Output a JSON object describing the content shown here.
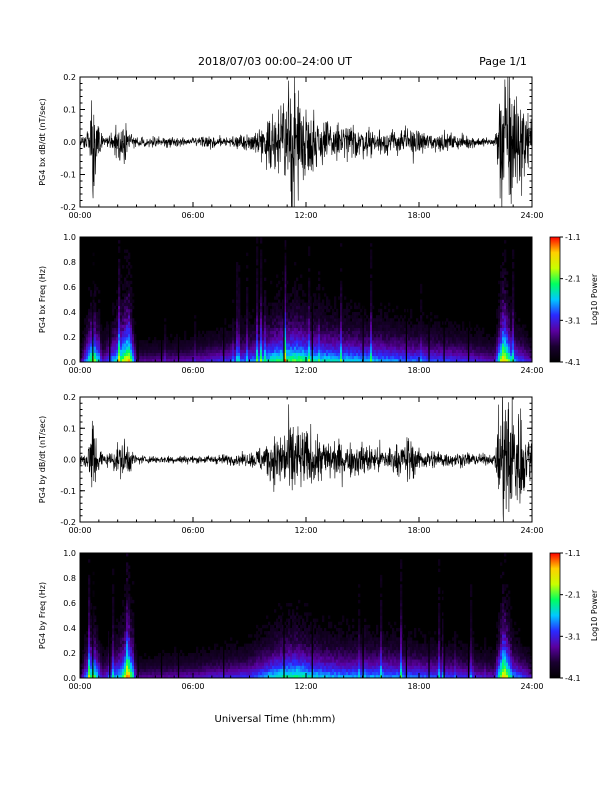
{
  "header": {
    "title": "2018/07/03  00:00–24:00 UT",
    "page": "Page 1/1"
  },
  "footer": {
    "xlabel": "Universal Time (hh:mm)"
  },
  "colors": {
    "trace": "#000000",
    "spectrogram_background": "#000000",
    "colorscale": [
      "#000000",
      "#1a0030",
      "#5a00a0",
      "#2a2aff",
      "#00c8ff",
      "#00ff60",
      "#c8ff00",
      "#ffd000",
      "#ff0000"
    ]
  },
  "chart_data": [
    {
      "type": "line",
      "ylabel": "PG4 bx dB/dt (nT/sec)",
      "x_unit": "hours UT",
      "xlim": [
        0,
        24
      ],
      "ylim": [
        -0.2,
        0.2
      ],
      "x_ticks": [
        "00:00",
        "06:00",
        "12:00",
        "18:00",
        "24:00"
      ],
      "y_ticks": [
        "0.2",
        "0.1",
        "0.0",
        "-0.1",
        "-0.2"
      ],
      "amplitude_envelope": {
        "hours": [
          0,
          0.5,
          0.7,
          0.9,
          1.2,
          1.6,
          2.0,
          2.3,
          2.6,
          3.0,
          4.0,
          5.0,
          6.0,
          7.0,
          8.0,
          9.0,
          9.6,
          10.2,
          10.6,
          10.9,
          11.3,
          11.7,
          12.2,
          12.6,
          13.0,
          14.0,
          15.0,
          16.0,
          17.0,
          17.4,
          18.0,
          19.0,
          20.0,
          21.0,
          22.0,
          22.4,
          22.6,
          22.9,
          23.2,
          23.6,
          24.0
        ],
        "amplitude": [
          0.02,
          0.03,
          0.2,
          0.06,
          0.02,
          0.02,
          0.05,
          0.06,
          0.03,
          0.012,
          0.012,
          0.014,
          0.012,
          0.015,
          0.016,
          0.02,
          0.04,
          0.07,
          0.09,
          0.12,
          0.2,
          0.1,
          0.09,
          0.08,
          0.06,
          0.05,
          0.04,
          0.035,
          0.03,
          0.05,
          0.03,
          0.025,
          0.02,
          0.015,
          0.01,
          0.2,
          0.2,
          0.2,
          0.15,
          0.1,
          0.05
        ]
      }
    },
    {
      "type": "heatmap",
      "ylabel": "PG4 bx Freq (Hz)",
      "x_unit": "hours UT",
      "xlim": [
        0,
        24
      ],
      "ylim": [
        0,
        1.0
      ],
      "x_ticks": [
        "00:00",
        "06:00",
        "12:00",
        "18:00",
        "24:00"
      ],
      "y_ticks": [
        "1.0",
        "0.8",
        "0.6",
        "0.4",
        "0.2",
        "0.0"
      ],
      "colorbar": {
        "label": "Log10 Power",
        "range": [
          -4.1,
          -1.1
        ],
        "ticks": [
          "-1.1",
          "-2.1",
          "-3.1",
          "-4.1"
        ]
      },
      "activity": {
        "hours": [
          0,
          0.7,
          1.2,
          2.2,
          2.6,
          3.0,
          6.0,
          9.0,
          10.5,
          11.5,
          12.5,
          14.0,
          16.0,
          18.0,
          20.0,
          22.0,
          22.5,
          23.0,
          24.0
        ],
        "level": [
          0.2,
          0.8,
          0.3,
          0.7,
          0.9,
          0.25,
          0.3,
          0.45,
          0.65,
          0.7,
          0.6,
          0.55,
          0.5,
          0.45,
          0.4,
          0.3,
          0.95,
          0.5,
          0.3
        ]
      },
      "data_gaps_hours": [
        0.65,
        1.55,
        3.05,
        4.3,
        5.2,
        7.6,
        10.8,
        12.3,
        15.0,
        17.3,
        18.5,
        19.3,
        20.6
      ]
    },
    {
      "type": "line",
      "ylabel": "PG4 by dB/dt (nT/sec)",
      "x_unit": "hours UT",
      "xlim": [
        0,
        24
      ],
      "ylim": [
        -0.2,
        0.2
      ],
      "x_ticks": [
        "00:00",
        "06:00",
        "12:00",
        "18:00",
        "24:00"
      ],
      "y_ticks": [
        "0.2",
        "0.1",
        "0.0",
        "-0.1",
        "-0.2"
      ],
      "amplitude_envelope": {
        "hours": [
          0,
          0.4,
          0.7,
          0.9,
          1.2,
          1.6,
          2.0,
          2.4,
          2.7,
          3.0,
          4.0,
          5.0,
          6.0,
          7.0,
          8.0,
          9.0,
          9.6,
          10.2,
          10.7,
          11.0,
          11.3,
          11.7,
          12.2,
          12.6,
          13.0,
          14.0,
          15.0,
          16.0,
          17.0,
          17.5,
          18.0,
          19.0,
          20.0,
          21.0,
          22.0,
          22.4,
          22.7,
          23.0,
          23.3,
          23.7,
          24.0
        ],
        "amplitude": [
          0.015,
          0.03,
          0.15,
          0.05,
          0.02,
          0.02,
          0.04,
          0.06,
          0.03,
          0.012,
          0.01,
          0.012,
          0.01,
          0.012,
          0.015,
          0.018,
          0.04,
          0.06,
          0.09,
          0.1,
          0.12,
          0.09,
          0.08,
          0.07,
          0.06,
          0.05,
          0.045,
          0.04,
          0.04,
          0.07,
          0.03,
          0.025,
          0.02,
          0.018,
          0.012,
          0.2,
          0.2,
          0.2,
          0.15,
          0.1,
          0.05
        ]
      }
    },
    {
      "type": "heatmap",
      "ylabel": "PG4 by Freq (Hz)",
      "x_unit": "hours UT",
      "xlim": [
        0,
        24
      ],
      "ylim": [
        0,
        1.0
      ],
      "x_ticks": [
        "00:00",
        "06:00",
        "12:00",
        "18:00",
        "24:00"
      ],
      "y_ticks": [
        "1.0",
        "0.8",
        "0.6",
        "0.4",
        "0.2",
        "0.0"
      ],
      "colorbar": {
        "label": "Log10 Power",
        "range": [
          -4.1,
          -1.1
        ],
        "ticks": [
          "-1.1",
          "-2.1",
          "-3.1",
          "-4.1"
        ]
      },
      "activity": {
        "hours": [
          0,
          0.7,
          1.2,
          2.2,
          2.6,
          3.0,
          6.0,
          9.0,
          10.5,
          11.5,
          12.5,
          14.0,
          16.0,
          18.0,
          20.0,
          22.0,
          22.5,
          23.0,
          24.0
        ],
        "level": [
          0.2,
          0.75,
          0.3,
          0.6,
          0.9,
          0.25,
          0.3,
          0.4,
          0.6,
          0.65,
          0.55,
          0.5,
          0.5,
          0.45,
          0.4,
          0.3,
          0.95,
          0.5,
          0.3
        ]
      },
      "data_gaps_hours": [
        0.65,
        1.55,
        3.05,
        4.3,
        5.2,
        7.6,
        10.8,
        12.3,
        15.0,
        17.3,
        18.5,
        19.3,
        20.6
      ]
    }
  ]
}
